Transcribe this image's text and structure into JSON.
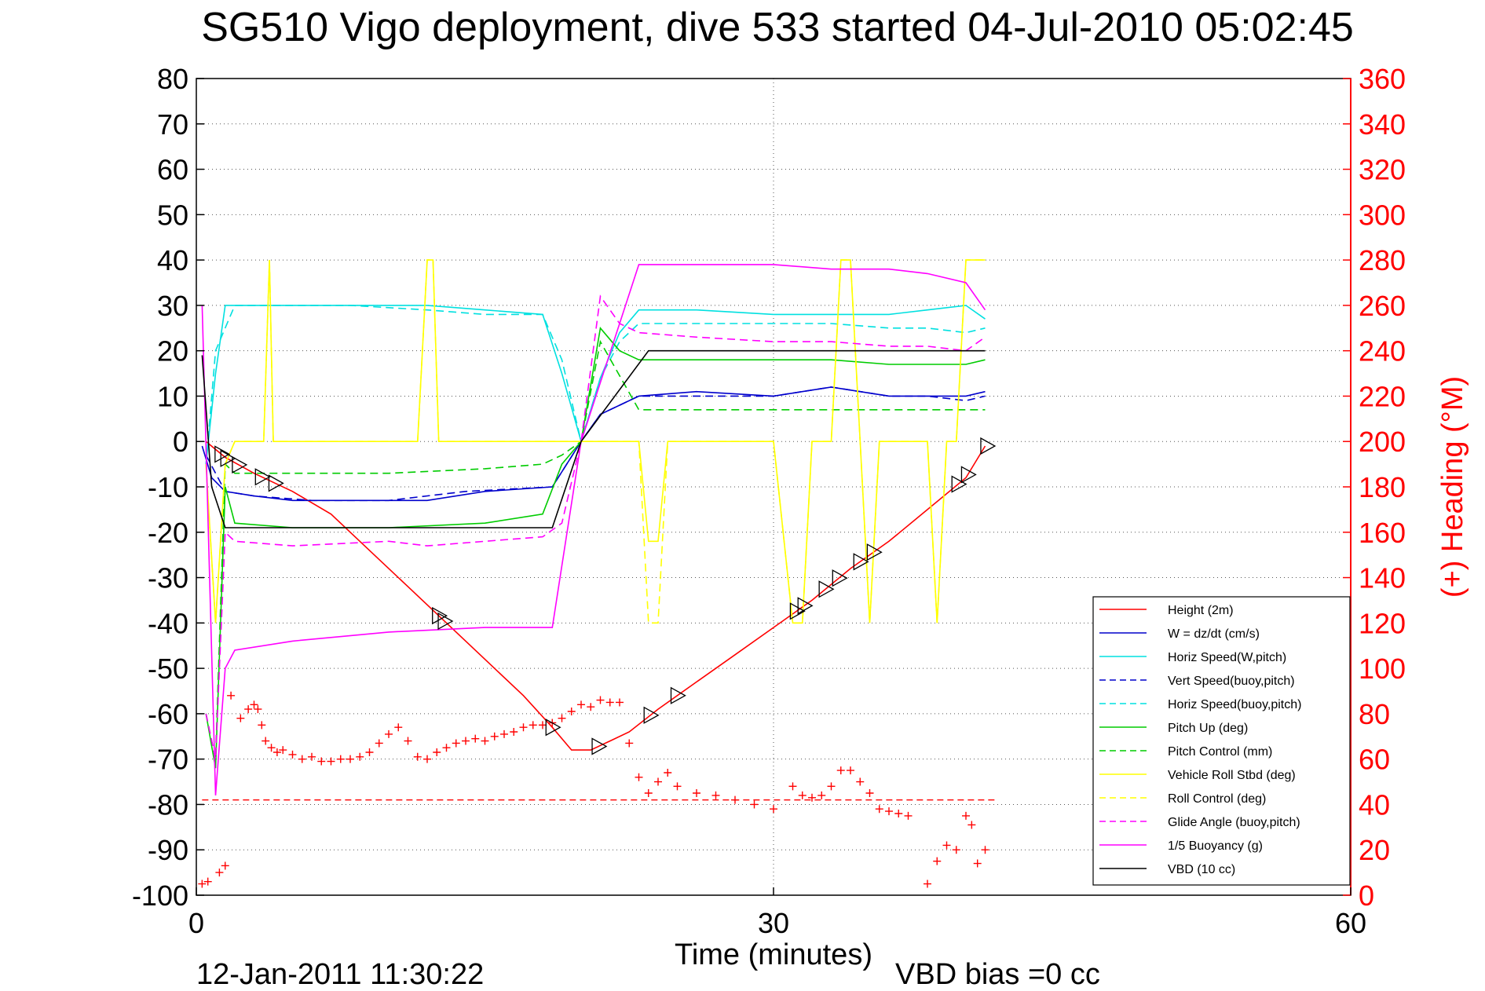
{
  "chart_data": {
    "type": "line",
    "title": "SG510 Vigo deployment, dive 533 started 04-Jul-2010 05:02:45",
    "xlabel": "Time (minutes)",
    "ylabel_right": "(+) Heading (°M)",
    "xlim": [
      0,
      60
    ],
    "ylim": [
      -100,
      80
    ],
    "ylim_right": [
      0,
      360
    ],
    "xticks": [
      "0",
      "30",
      "60"
    ],
    "yticks": [
      "80",
      "70",
      "60",
      "50",
      "40",
      "30",
      "20",
      "10",
      "0",
      "-10",
      "-20",
      "-30",
      "-40",
      "-50",
      "-60",
      "-70",
      "-80",
      "-90",
      "-100"
    ],
    "yticks_right": [
      "360",
      "340",
      "320",
      "300",
      "280",
      "260",
      "240",
      "220",
      "200",
      "180",
      "160",
      "140",
      "120",
      "100",
      "80",
      "60",
      "40",
      "20",
      "0"
    ],
    "grid": true,
    "legend_position": "bottom-right",
    "footer_date": "12-Jan-2011 11:30:22",
    "footer_vbd": "VBD bias =0 cc",
    "series": [
      {
        "name": "Height (2m)",
        "color": "#ff0000",
        "style": "solid",
        "x": [
          0.5,
          1.5,
          3,
          5,
          7,
          9,
          11,
          13,
          15,
          17,
          18.5,
          19.5,
          20.5,
          21.5,
          22.5,
          24,
          26,
          28,
          30,
          32,
          34,
          36,
          38,
          40,
          41
        ],
        "y": [
          0,
          -3.5,
          -7,
          -11,
          -16,
          -24,
          -32,
          -40,
          -48,
          -56,
          -63,
          -68,
          -68,
          -66,
          -64,
          -59,
          -53,
          -47,
          -41,
          -35,
          -28,
          -22,
          -15,
          -8,
          -1
        ]
      },
      {
        "name": "W = dz/dt (cm/s)",
        "color": "#0000cc",
        "style": "solid",
        "x": [
          0.3,
          0.8,
          1.5,
          3,
          5,
          8,
          12,
          15,
          18.5,
          20,
          21,
          23,
          26,
          30,
          33,
          36,
          38,
          40,
          41
        ],
        "y": [
          -1,
          -8,
          -11,
          -12,
          -13,
          -13,
          -13,
          -11,
          -10,
          0,
          6,
          10,
          11,
          10,
          12,
          10,
          10,
          10,
          11
        ]
      },
      {
        "name": "Horiz Speed(W,pitch)",
        "color": "#00e0e0",
        "style": "solid",
        "x": [
          0.5,
          1,
          1.5,
          2,
          4,
          8,
          12,
          15,
          18,
          19,
          20,
          21,
          22,
          23,
          26,
          30,
          33,
          36,
          38,
          40,
          41
        ],
        "y": [
          -5,
          15,
          30,
          30,
          30,
          30,
          30,
          29,
          28,
          15,
          0,
          14,
          24,
          29,
          29,
          28,
          28,
          28,
          29,
          30,
          27
        ]
      },
      {
        "name": "Vert Speed(buoy,pitch)",
        "color": "#0000cc",
        "style": "dashed",
        "x": [
          0.5,
          1.5,
          3,
          6,
          10,
          14,
          18.5,
          20,
          21,
          23,
          26,
          30,
          33,
          36,
          38,
          40,
          41
        ],
        "y": [
          -3,
          -11,
          -12,
          -13,
          -13,
          -11,
          -10,
          0,
          6,
          10,
          10,
          10,
          12,
          10,
          10,
          9,
          10
        ]
      },
      {
        "name": "Horiz Speed(buoy,pitch)",
        "color": "#00e0e0",
        "style": "dashed",
        "x": [
          0.5,
          1,
          2,
          4,
          8,
          12,
          15,
          18,
          19,
          20,
          21,
          22,
          23,
          26,
          30,
          33,
          36,
          38,
          40,
          41
        ],
        "y": [
          -5,
          20,
          30,
          30,
          30,
          29,
          28,
          28,
          18,
          0,
          14,
          22,
          26,
          26,
          26,
          26,
          25,
          25,
          24,
          25
        ]
      },
      {
        "name": "Pitch Up (deg)",
        "color": "#00cc00",
        "style": "solid",
        "x": [
          0.5,
          1,
          1.5,
          2,
          5,
          10,
          15,
          18,
          19,
          20,
          21,
          22,
          23,
          26,
          30,
          33,
          36,
          38,
          40,
          41
        ],
        "y": [
          -60,
          -72,
          -10,
          -18,
          -19,
          -19,
          -18,
          -16,
          -5,
          0,
          25,
          20,
          18,
          18,
          18,
          18,
          17,
          17,
          17,
          18
        ]
      },
      {
        "name": "Pitch Control (mm)",
        "color": "#00cc00",
        "style": "dashed",
        "x": [
          0.5,
          1,
          1.5,
          2,
          5,
          10,
          15,
          18,
          19,
          20,
          21,
          23,
          26,
          30,
          33,
          36,
          38,
          40,
          41
        ],
        "y": [
          -60,
          -70,
          -5,
          -7,
          -7,
          -7,
          -6,
          -5,
          -3,
          0,
          22,
          7,
          7,
          7,
          7,
          7,
          7,
          7,
          7
        ]
      },
      {
        "name": "Vehicle Roll Stbd (deg)",
        "color": "#ffff00",
        "style": "solid",
        "x": [
          0.5,
          1,
          1.5,
          2,
          3,
          3.5,
          3.8,
          4,
          11.5,
          12,
          12.3,
          12.6,
          18,
          20,
          23,
          23.5,
          24,
          24.5,
          30,
          31,
          31.5,
          32,
          33,
          33.5,
          34,
          34.5,
          35,
          35.5,
          36,
          38,
          38.5,
          39,
          39.5,
          40,
          41
        ],
        "y": [
          -5,
          -40,
          -5,
          0,
          0,
          0,
          40,
          0,
          0,
          40,
          40,
          0,
          0,
          0,
          0,
          -22,
          -22,
          0,
          0,
          -40,
          -40,
          0,
          0,
          40,
          40,
          0,
          -40,
          0,
          0,
          0,
          -40,
          0,
          0,
          40,
          40
        ]
      },
      {
        "name": "Roll Control (deg)",
        "color": "#ffff00",
        "style": "dashed",
        "x": [
          0.5,
          1,
          1.5,
          2,
          3,
          3.5,
          3.8,
          4,
          11.5,
          12,
          12.3,
          12.6,
          18,
          20,
          23,
          23.5,
          24,
          24.5,
          30,
          31,
          31.5,
          32,
          33,
          33.5,
          34,
          34.5,
          35,
          35.5,
          36,
          38,
          38.5,
          39,
          39.5,
          40,
          41
        ],
        "y": [
          -5,
          -40,
          -5,
          0,
          0,
          0,
          40,
          0,
          0,
          40,
          40,
          0,
          0,
          0,
          0,
          -40,
          -40,
          0,
          0,
          -40,
          -40,
          0,
          0,
          40,
          40,
          0,
          -40,
          0,
          0,
          0,
          -40,
          0,
          0,
          40,
          40
        ]
      },
      {
        "name": "Glide Angle (buoy,pitch)",
        "color": "#ff00ff",
        "style": "dashed",
        "x": [
          0.5,
          1,
          1.5,
          2,
          5,
          10,
          12,
          15,
          18,
          19,
          20,
          21,
          22,
          23,
          26,
          30,
          33,
          36,
          38,
          40,
          41
        ],
        "y": [
          -60,
          -70,
          -20,
          -22,
          -23,
          -22,
          -23,
          -22,
          -21,
          -18,
          0,
          32,
          26,
          24,
          23,
          22,
          22,
          21,
          21,
          20,
          23
        ]
      },
      {
        "name": "1/5 Buoyancy (g)",
        "color": "#ff00ff",
        "style": "solid",
        "x": [
          0.3,
          1,
          1.5,
          2,
          5,
          10,
          15,
          18.5,
          20,
          23,
          26,
          30,
          33,
          36,
          38,
          40,
          41
        ],
        "y": [
          30,
          -78,
          -50,
          -46,
          -44,
          -42,
          -41,
          -41,
          0,
          39,
          39,
          39,
          38,
          38,
          37,
          35,
          29
        ]
      },
      {
        "name": "VBD (10 cc)",
        "color": "#000000",
        "style": "solid",
        "x": [
          0.3,
          0.8,
          1.5,
          5,
          10,
          15,
          18.5,
          20,
          23.5,
          26,
          30,
          35,
          41
        ],
        "y": [
          19,
          -10,
          -19,
          -19,
          -19,
          -19,
          -19,
          0,
          20,
          20,
          20,
          20,
          20
        ]
      },
      {
        "name": "",
        "color": "#ff0000",
        "style": "plus",
        "axis": "right",
        "x": [
          0.3,
          0.6,
          1.2,
          1.5,
          1.8,
          2.3,
          2.7,
          3.0,
          3.2,
          3.4,
          3.6,
          3.9,
          4.2,
          4.5,
          5,
          5.5,
          6,
          6.5,
          7,
          7.5,
          8,
          8.5,
          9,
          9.5,
          10,
          10.5,
          11,
          11.5,
          12,
          12.5,
          13,
          13.5,
          14,
          14.5,
          15,
          15.5,
          16,
          16.5,
          17,
          17.5,
          18,
          18.5,
          19,
          19.5,
          20,
          20.5,
          21,
          21.5,
          22,
          22.5,
          23,
          23.5,
          24,
          24.5,
          25,
          26,
          27,
          28,
          29,
          30,
          31,
          31.5,
          32,
          32.5,
          33,
          33.5,
          34,
          34.5,
          35,
          35.5,
          36,
          36.5,
          37,
          38,
          38.5,
          39,
          39.5,
          40,
          40.3,
          40.6,
          41
        ],
        "y": [
          5,
          6,
          10,
          13,
          88,
          78,
          82,
          84,
          82,
          75,
          68,
          65,
          63,
          64,
          62,
          60,
          61,
          59,
          59,
          60,
          60,
          61,
          63,
          67,
          71,
          74,
          68,
          61,
          60,
          63,
          65,
          67,
          68,
          69,
          68,
          70,
          71,
          72,
          74,
          75,
          75,
          76,
          78,
          81,
          84,
          83,
          86,
          85,
          85,
          67,
          52,
          45,
          50,
          54,
          48,
          45,
          44,
          42,
          40,
          38,
          48,
          44,
          43,
          44,
          48,
          55,
          55,
          50,
          45,
          38,
          37,
          36,
          35,
          5,
          15,
          22,
          20,
          35,
          31,
          14,
          20
        ]
      }
    ],
    "heading_reference": 42,
    "triangle_markers_minutes": [
      1.3,
      1.6,
      2.2,
      3.4,
      4.1,
      12.6,
      12.9,
      18.5,
      20.9,
      23.6,
      25,
      31.2,
      31.6,
      32.7,
      33.4,
      34.5,
      35.2,
      39.6,
      40.1,
      41.1
    ]
  }
}
